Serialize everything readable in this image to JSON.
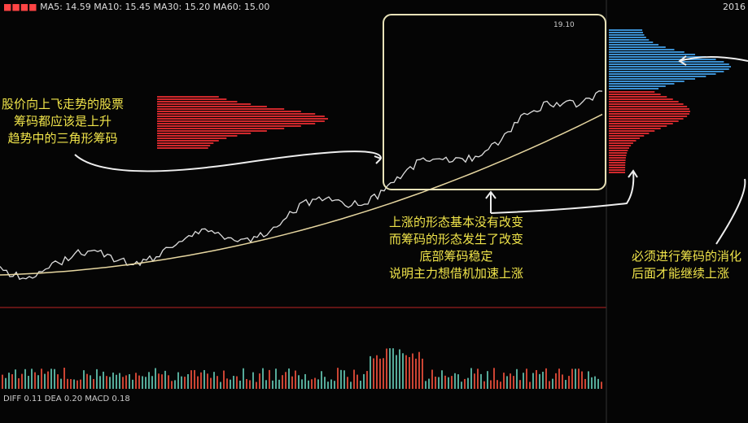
{
  "header": {
    "indicators": "MA5: 14.59  MA10: 15.45  MA30: 15.20  MA60: 15.00",
    "year": "2016"
  },
  "peak_label": "19.10",
  "annotations": [
    {
      "lines": [
        "股价向上飞走势的股票",
        "筹码都应该是上升",
        "趋势中的三角形筹码"
      ]
    },
    {
      "lines": [
        "上涨的形态基本没有改变",
        "而筹码的形态发生了改变",
        "底部筹码稳定",
        "说明主力想借机加速上涨"
      ]
    },
    {
      "lines": [
        "必须进行筹码的消化",
        "后面才能继续上涨"
      ]
    }
  ],
  "macd_header": "DIFF 0.11  DEA 0.20  MACD 0.18"
}
